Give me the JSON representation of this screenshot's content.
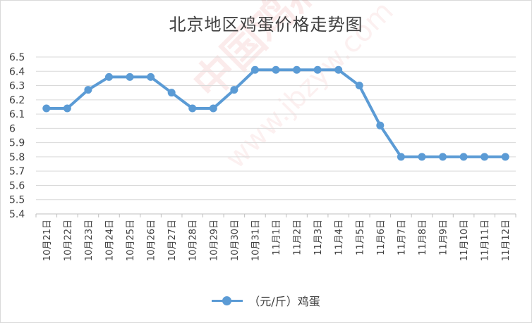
{
  "watermark": {
    "text_main": "中国鸡病专业网",
    "text_url": "www.jbzyw.com"
  },
  "chart_data": {
    "type": "line",
    "title": "北京地区鸡蛋价格走势图",
    "xlabel": "",
    "ylabel": "",
    "categories": [
      "10月21日",
      "10月22日",
      "10月23日",
      "10月24日",
      "10月25日",
      "10月26日",
      "10月27日",
      "10月28日",
      "10月29日",
      "10月30日",
      "10月31日",
      "11月1日",
      "11月2日",
      "11月3日",
      "11月4日",
      "11月5日",
      "11月6日",
      "11月7日",
      "11月8日",
      "11月9日",
      "11月10日",
      "11月11日",
      "11月12日"
    ],
    "series": [
      {
        "name": "（元/斤）鸡蛋",
        "color": "#5b9bd5",
        "values": [
          6.14,
          6.14,
          6.27,
          6.36,
          6.36,
          6.36,
          6.25,
          6.14,
          6.14,
          6.27,
          6.41,
          6.41,
          6.41,
          6.41,
          6.41,
          6.3,
          6.02,
          5.8,
          5.8,
          5.8,
          5.8,
          5.8,
          5.8
        ]
      }
    ],
    "ylim": [
      5.4,
      6.5
    ],
    "yticks": [
      "5.4",
      "5.5",
      "5.6",
      "5.7",
      "5.8",
      "5.9",
      "6",
      "6.1",
      "6.2",
      "6.3",
      "6.4",
      "6.5"
    ],
    "grid": true,
    "legend_position": "bottom"
  }
}
